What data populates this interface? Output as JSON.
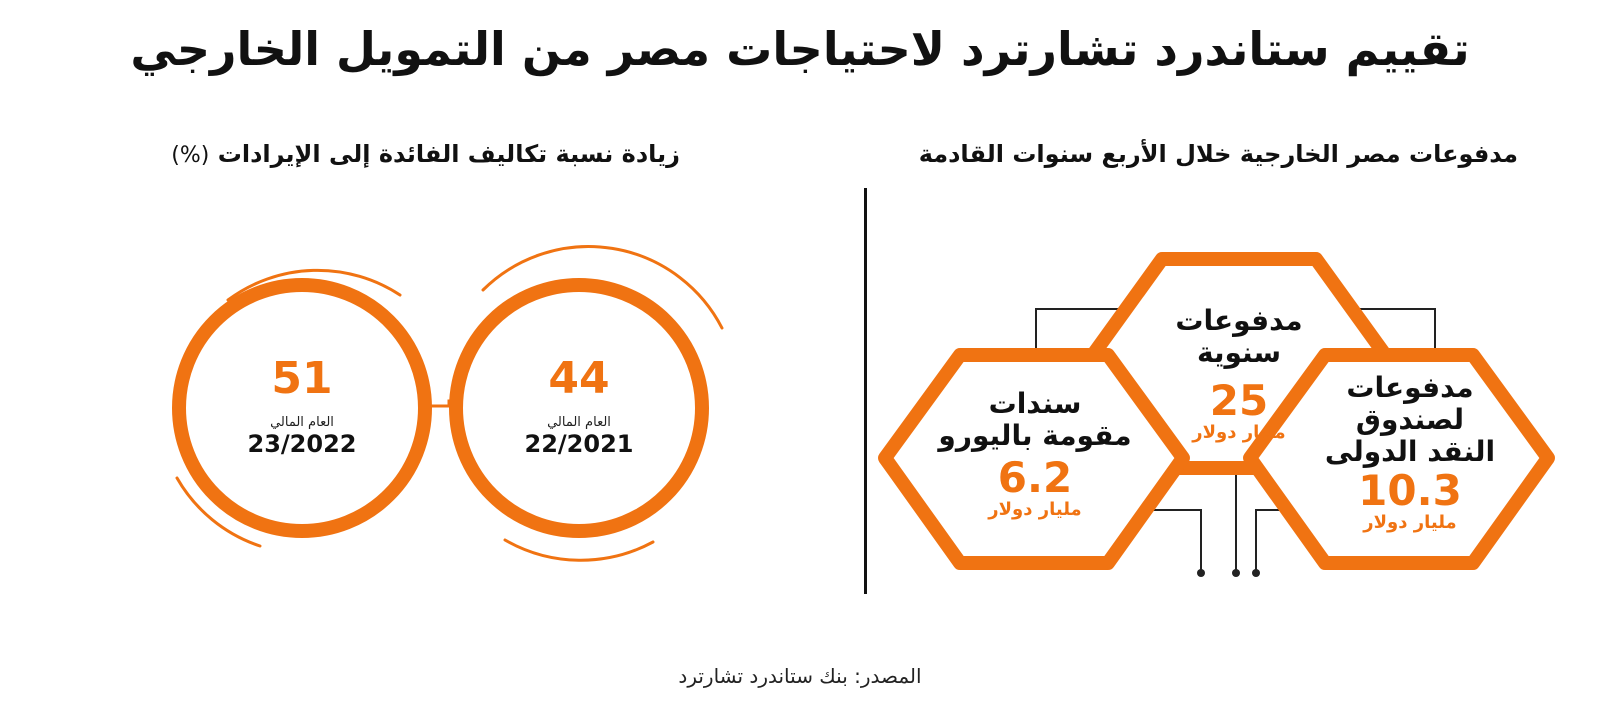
{
  "title": "تقييم ستاندرد تشارترد لاحتياجات مصر من التمويل الخارجي",
  "right_panel": {
    "heading": "مدفوعات مصر الخارجية خلال الأربع سنوات القادمة",
    "items": [
      {
        "title_lines": [
          "مدفوعات",
          "سنوية"
        ],
        "value": "25",
        "unit": "مليار دولار"
      },
      {
        "title_lines": [
          "مدفوعات",
          "لصندوق",
          "النقد الدولى"
        ],
        "value": "10.3",
        "unit": "مليار دولار"
      },
      {
        "title_lines": [
          "سندات",
          "مقومة باليورو"
        ],
        "value": "6.2",
        "unit": "مليار دولار"
      }
    ]
  },
  "left_panel": {
    "heading": "زيادة نسبة تكاليف الفائدة إلى الإيرادات",
    "heading_unit": "(%)",
    "circles": [
      {
        "value": "44",
        "label": "العام المالي",
        "year": "22/2021"
      },
      {
        "value": "51",
        "label": "العام المالي",
        "year": "23/2022"
      }
    ]
  },
  "source": "المصدر: بنك ستاندرد تشارترد",
  "colors": {
    "accent": "#f07312",
    "text": "#111111",
    "background": "#ffffff"
  }
}
